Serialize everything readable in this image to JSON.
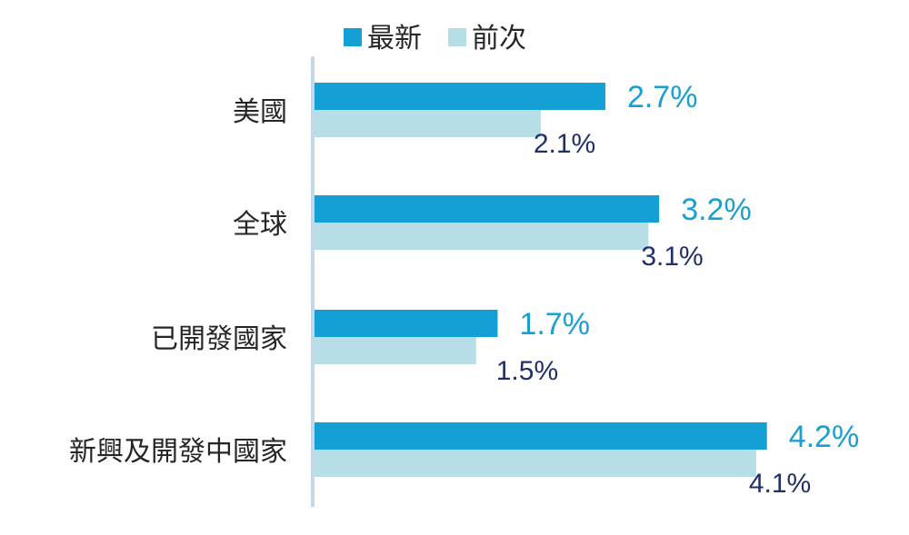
{
  "chart_data": {
    "type": "bar",
    "orientation": "horizontal",
    "categories": [
      "美國",
      "全球",
      "已開發國家",
      "新興及開發中國家"
    ],
    "series": [
      {
        "name": "最新",
        "values": [
          2.7,
          3.2,
          1.7,
          4.2
        ],
        "labels": [
          "2.7%",
          "3.2%",
          "1.7%",
          "4.2%"
        ],
        "color": "#14a0d4",
        "label_color": "#1a9fd2"
      },
      {
        "name": "前次",
        "values": [
          2.1,
          3.1,
          1.5,
          4.1
        ],
        "labels": [
          "2.1%",
          "3.1%",
          "1.5%",
          "4.1%"
        ],
        "color": "#b7dde7",
        "label_color": "#1f2f6b"
      }
    ],
    "xlim": [
      0,
      5.5
    ],
    "legend": "top",
    "axis_color": "#c5d7ea",
    "grid": false
  }
}
